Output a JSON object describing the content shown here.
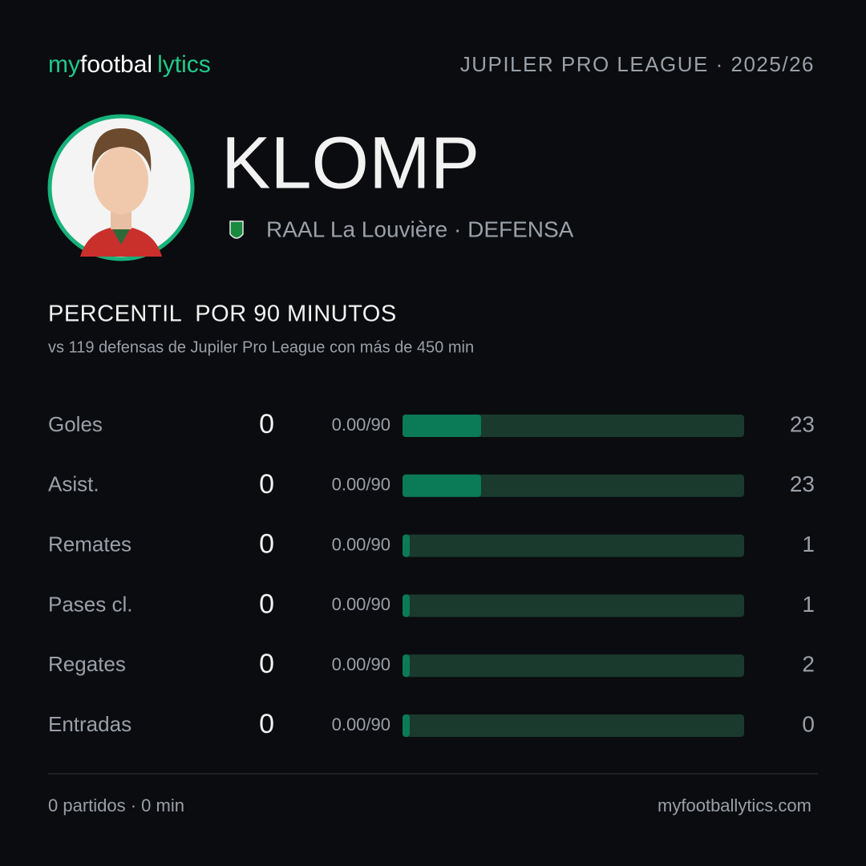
{
  "header": {
    "brand": [
      "my",
      "footbal",
      "lytics"
    ],
    "league": "JUPILER PRO LEAGUE · 2025/26"
  },
  "player": {
    "name": "KLOMP",
    "team": "RAAL La Louvière · DEFENSA"
  },
  "section": {
    "title": "PERCENTIL  POR 90 MINUTOS",
    "subtitle": "vs 119 defensas de Jupiler Pro League con más de 450 min"
  },
  "bars": {
    "xlim": [
      0,
      100
    ],
    "track_color": "#1a3a2e",
    "fill_color": "#0b7a56",
    "rows": [
      {
        "label": "Goles",
        "value": 0,
        "per90": "0.00/90",
        "percentile": 23
      },
      {
        "label": "Asist.",
        "value": 0,
        "per90": "0.00/90",
        "percentile": 23
      },
      {
        "label": "Remates",
        "value": 0,
        "per90": "0.00/90",
        "percentile": 1
      },
      {
        "label": "Pases cl.",
        "value": 0,
        "per90": "0.00/90",
        "percentile": 1
      },
      {
        "label": "Regates",
        "value": 0,
        "per90": "0.00/90",
        "percentile": 2
      },
      {
        "label": "Entradas",
        "value": 0,
        "per90": "0.00/90",
        "percentile": 0
      }
    ]
  },
  "footer": {
    "stats": "0 partidos · 0 min",
    "site": "myfootballytics.com"
  }
}
